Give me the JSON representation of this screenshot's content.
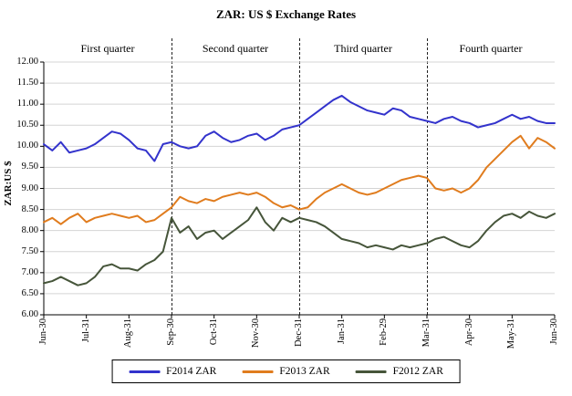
{
  "chart_data": {
    "type": "line",
    "title": "ZAR: US $ Exchange Rates",
    "ylabel": "ZAR:US $",
    "ylim": [
      6.0,
      12.0
    ],
    "ytick_step": 0.5,
    "grid": true,
    "legend_position": "bottom",
    "x_tick_labels": [
      "Jun-30",
      "Jul-31",
      "Aug-31",
      "Sep-30",
      "Oct-31",
      "Nov-30",
      "Dec-31",
      "Jan-31",
      "Feb-29",
      "Mar-31",
      "Apr-30",
      "May-31",
      "Jun-30"
    ],
    "divider_ticks": [
      3,
      6,
      9
    ],
    "quarters": [
      {
        "label": "First quarter",
        "from_tick": 0,
        "to_tick": 3
      },
      {
        "label": "Second quarter",
        "from_tick": 3,
        "to_tick": 6
      },
      {
        "label": "Third quarter",
        "from_tick": 6,
        "to_tick": 9
      },
      {
        "label": "Fourth quarter",
        "from_tick": 9,
        "to_tick": 12
      }
    ],
    "series": [
      {
        "name": "F2014 ZAR",
        "color": "#3333cc",
        "values": [
          10.05,
          9.9,
          10.1,
          9.85,
          9.9,
          9.95,
          10.05,
          10.2,
          10.35,
          10.3,
          10.15,
          9.95,
          9.9,
          9.65,
          10.05,
          10.1,
          10.0,
          9.95,
          10.0,
          10.25,
          10.35,
          10.2,
          10.1,
          10.15,
          10.25,
          10.3,
          10.15,
          10.25,
          10.4,
          10.45,
          10.5,
          10.65,
          10.8,
          10.95,
          11.1,
          11.2,
          11.05,
          10.95,
          10.85,
          10.8,
          10.75,
          10.9,
          10.85,
          10.7,
          10.65,
          10.6,
          10.55,
          10.65,
          10.7,
          10.6,
          10.55,
          10.45,
          10.5,
          10.55,
          10.65,
          10.75,
          10.65,
          10.7,
          10.6,
          10.55,
          10.55
        ]
      },
      {
        "name": "F2013 ZAR",
        "color": "#e07c1e",
        "values": [
          8.2,
          8.3,
          8.15,
          8.3,
          8.4,
          8.2,
          8.3,
          8.35,
          8.4,
          8.35,
          8.3,
          8.35,
          8.2,
          8.25,
          8.4,
          8.55,
          8.8,
          8.7,
          8.65,
          8.75,
          8.7,
          8.8,
          8.85,
          8.9,
          8.85,
          8.9,
          8.8,
          8.65,
          8.55,
          8.6,
          8.5,
          8.55,
          8.75,
          8.9,
          9.0,
          9.1,
          9.0,
          8.9,
          8.85,
          8.9,
          9.0,
          9.1,
          9.2,
          9.25,
          9.3,
          9.25,
          9.0,
          8.95,
          9.0,
          8.9,
          9.0,
          9.2,
          9.5,
          9.7,
          9.9,
          10.1,
          10.25,
          9.95,
          10.2,
          10.1,
          9.95
        ]
      },
      {
        "name": "F2012 ZAR",
        "color": "#46553a",
        "values": [
          6.75,
          6.8,
          6.9,
          6.8,
          6.7,
          6.75,
          6.9,
          7.15,
          7.2,
          7.1,
          7.1,
          7.05,
          7.2,
          7.3,
          7.5,
          8.3,
          7.95,
          8.1,
          7.8,
          7.95,
          8.0,
          7.8,
          7.95,
          8.1,
          8.25,
          8.55,
          8.2,
          8.0,
          8.3,
          8.2,
          8.3,
          8.25,
          8.2,
          8.1,
          7.95,
          7.8,
          7.75,
          7.7,
          7.6,
          7.65,
          7.6,
          7.55,
          7.65,
          7.6,
          7.65,
          7.7,
          7.8,
          7.85,
          7.75,
          7.65,
          7.6,
          7.75,
          8.0,
          8.2,
          8.35,
          8.4,
          8.3,
          8.45,
          8.35,
          8.3,
          8.4
        ]
      }
    ],
    "axis_color": "#000000",
    "gridline_color": "#d4d4d4"
  }
}
